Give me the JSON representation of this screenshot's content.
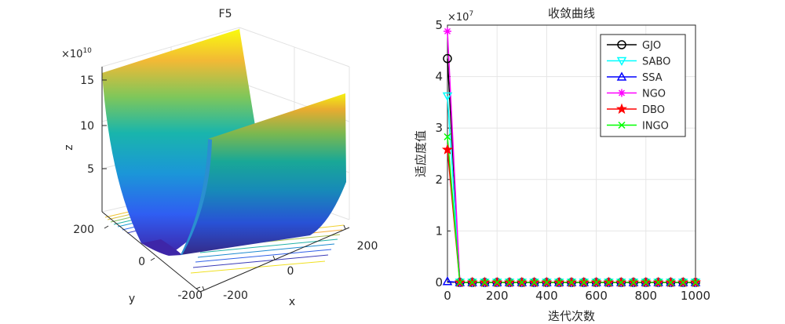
{
  "surface_plot": {
    "title": "F5",
    "xlabel": "x",
    "ylabel": "y",
    "zlabel": "z",
    "z_exponent_base": "×10",
    "z_exponent_power": "10",
    "x_ticks": [
      "-200",
      "0",
      "200"
    ],
    "y_ticks": [
      "-200",
      "0",
      "200"
    ],
    "z_ticks": [
      "5",
      "10",
      "15"
    ],
    "colormap": "parula"
  },
  "chart_data": {
    "type": "line",
    "title": "收敛曲线",
    "xlabel": "迭代次数",
    "ylabel": "适应度值",
    "xlim": [
      0,
      1000
    ],
    "ylim": [
      0,
      5
    ],
    "y_exponent_base": "×10",
    "y_exponent_power": "7",
    "x_ticks": [
      "0",
      "200",
      "400",
      "600",
      "800",
      "1000"
    ],
    "y_ticks": [
      "0",
      "1",
      "2",
      "3",
      "4",
      "5"
    ],
    "grid": true,
    "legend_position": "top-right",
    "x": [
      0,
      50,
      100,
      150,
      200,
      250,
      300,
      350,
      400,
      450,
      500,
      550,
      600,
      650,
      700,
      750,
      800,
      850,
      900,
      950,
      1000
    ],
    "series": [
      {
        "name": "GJO",
        "color": "#000000",
        "marker": "circle",
        "first": 4.35
      },
      {
        "name": "SABO",
        "color": "#00ffff",
        "marker": "triangle-down",
        "first": 3.62
      },
      {
        "name": "SSA",
        "color": "#0000ff",
        "marker": "triangle-up",
        "first": 0.02
      },
      {
        "name": "NGO",
        "color": "#ff00ff",
        "marker": "asterisk",
        "first": 4.88
      },
      {
        "name": "DBO",
        "color": "#ff0000",
        "marker": "star",
        "first": 2.58
      },
      {
        "name": "INGO",
        "color": "#00ff00",
        "marker": "x",
        "first": 2.83
      }
    ]
  }
}
